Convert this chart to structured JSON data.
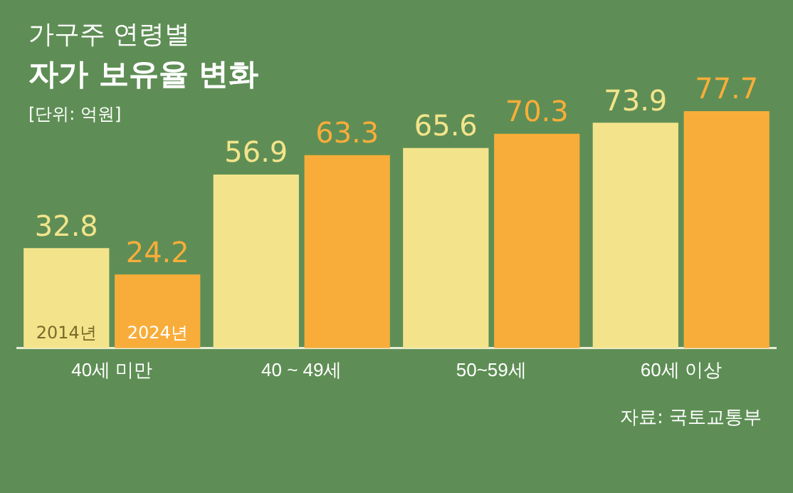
{
  "chart_data": {
    "type": "bar",
    "title": "가구주 연령별",
    "subtitle": "자가 보유율 변화",
    "categories": [
      "40세 미만",
      "40 ~ 49세",
      "50~59세",
      "60세 이상"
    ],
    "series": [
      {
        "name": "2014년",
        "color": "#f3e48b",
        "values": [
          32.8,
          56.9,
          65.6,
          73.9
        ]
      },
      {
        "name": "2024년",
        "color": "#f8ad3a",
        "values": [
          24.2,
          63.3,
          70.3,
          77.7
        ]
      }
    ],
    "data_labels": true,
    "legend": false,
    "grid": false,
    "annotations": [
      "[단위: 억원]",
      "자료: 국토교통부"
    ]
  }
}
